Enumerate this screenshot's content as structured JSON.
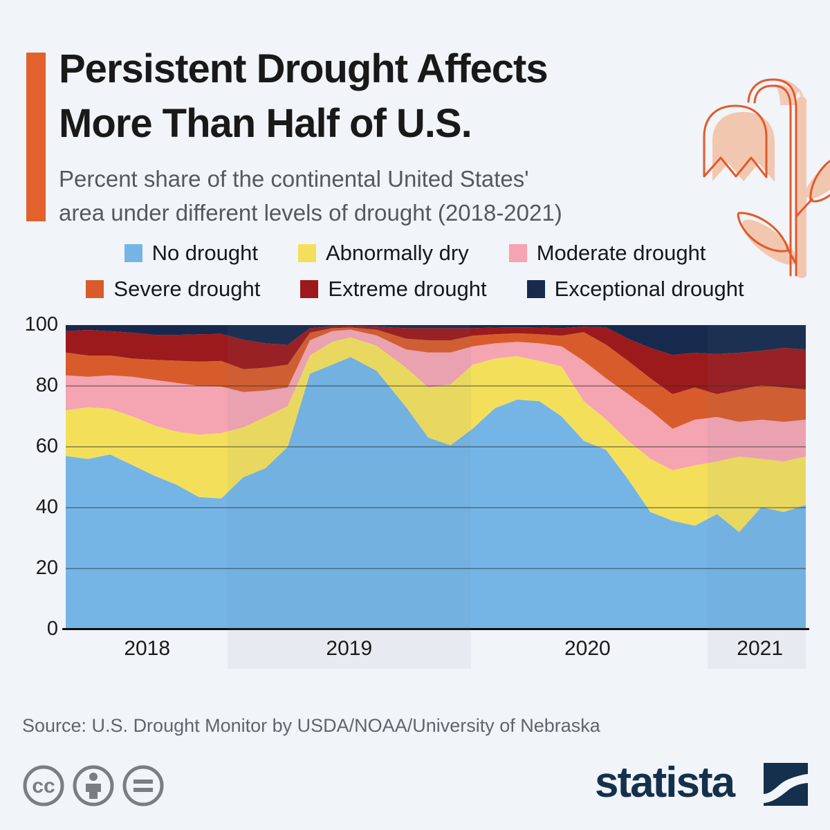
{
  "page": {
    "background": "#F1F4F8",
    "accent_color": "#E2612C"
  },
  "header": {
    "title_line1": "Persistent Drought Affects",
    "title_line2": "More Than Half of U.S.",
    "subtitle_line1": "Percent share of the continental United States'",
    "subtitle_line2": "area under different levels of drought (2018-2021)"
  },
  "legend": {
    "items": [
      {
        "key": "no-drought",
        "label": "No drought",
        "color": "#74B5E6"
      },
      {
        "key": "abnormally-dry",
        "label": "Abnormally dry",
        "color": "#F4DF5B"
      },
      {
        "key": "moderate-drought",
        "label": "Moderate drought",
        "color": "#F5A4B2"
      },
      {
        "key": "severe-drought",
        "label": "Severe drought",
        "color": "#D85C2B"
      },
      {
        "key": "extreme-drought",
        "label": "Extreme drought",
        "color": "#9C1A1C"
      },
      {
        "key": "exceptional-drought",
        "label": "Exceptional drought",
        "color": "#172A4D"
      }
    ]
  },
  "chart_data": {
    "type": "area",
    "stacked": true,
    "title": "Percent share of the continental United States' area under different levels of drought (2018-2021)",
    "ylabel": "Percent share",
    "ylim": [
      0,
      100
    ],
    "grid": true,
    "legend_position": "top",
    "x": [
      0,
      0.03,
      0.06,
      0.09,
      0.12,
      0.15,
      0.18,
      0.21,
      0.24,
      0.27,
      0.3,
      0.33,
      0.36,
      0.385,
      0.42,
      0.46,
      0.49,
      0.52,
      0.55,
      0.58,
      0.61,
      0.64,
      0.67,
      0.7,
      0.73,
      0.76,
      0.79,
      0.82,
      0.85,
      0.88,
      0.91,
      0.94,
      0.97,
      1.0
    ],
    "x_axis": {
      "ticks": [
        {
          "label": "2018",
          "pos": 0.11
        },
        {
          "label": "2019",
          "pos": 0.383
        },
        {
          "label": "2020",
          "pos": 0.705
        },
        {
          "label": "2021",
          "pos": 0.938
        }
      ],
      "band_edges": [
        0,
        0.219,
        0.548,
        0.867,
        1
      ]
    },
    "y_axis": {
      "ticks": [
        0,
        20,
        40,
        60,
        80,
        100
      ]
    },
    "series": [
      {
        "key": "no-drought",
        "name": "No drought",
        "color": "#74B5E6",
        "values": [
          57,
          56,
          57.5,
          54,
          50.5,
          47.5,
          43.5,
          43,
          50,
          53,
          60,
          84,
          87,
          89.5,
          85,
          73,
          63,
          60.5,
          66,
          72.7,
          75.5,
          75,
          70,
          62,
          59,
          49.3,
          38.6,
          35.7,
          34.1,
          37.9,
          32,
          40.2,
          38.6,
          40.9
        ]
      },
      {
        "key": "abnormally-dry",
        "name": "Abnormally dry",
        "color": "#F4DF5B",
        "values": [
          15,
          17,
          15,
          16,
          16.5,
          17.5,
          20.5,
          21.5,
          16.4,
          16.8,
          13.4,
          6,
          7.5,
          6.5,
          8.2,
          13,
          16.5,
          20,
          21,
          16.3,
          14.3,
          13.2,
          16.4,
          13,
          10,
          12.7,
          17.5,
          16.6,
          19.8,
          17.3,
          24.8,
          15.9,
          16.6,
          15.9
        ]
      },
      {
        "key": "moderate-drought",
        "name": "Moderate drought",
        "color": "#F5A4B2",
        "values": [
          11.5,
          10,
          11,
          13,
          15,
          16,
          16,
          15.3,
          11.6,
          8.7,
          6.1,
          5,
          3.5,
          2.5,
          3.4,
          6,
          11.5,
          10.5,
          6,
          5,
          4.7,
          5.8,
          6.6,
          13.2,
          13.5,
          15.3,
          15.9,
          13.6,
          15,
          14.6,
          11.4,
          12.8,
          13,
          12.1
        ]
      },
      {
        "key": "severe-drought",
        "name": "Severe drought",
        "color": "#D85C2B",
        "values": [
          7.5,
          7,
          6.5,
          6,
          6.6,
          7.3,
          8,
          8.4,
          7.5,
          7.5,
          7.5,
          2.5,
          1,
          0.7,
          1.9,
          3.5,
          4,
          4,
          3.5,
          3,
          2.8,
          3,
          3.5,
          9.5,
          11.1,
          10.9,
          10.5,
          11.4,
          10.6,
          7.5,
          10.6,
          11.3,
          11.3,
          9.9
        ]
      },
      {
        "key": "extreme-drought",
        "name": "Extreme drought",
        "color": "#9C1A1C",
        "values": [
          7,
          8.4,
          8,
          8.5,
          8.2,
          8.5,
          9,
          8.9,
          9.7,
          8,
          6.5,
          1.5,
          0.6,
          0.5,
          1,
          3.5,
          4,
          4,
          2.5,
          2.2,
          2,
          2.2,
          2.5,
          1.8,
          5.7,
          7.3,
          10,
          12.9,
          11.4,
          13.2,
          12.1,
          11.4,
          13,
          13.2
        ]
      },
      {
        "key": "exceptional-drought",
        "name": "Exceptional drought",
        "color": "#172A4D",
        "values": [
          2,
          1.6,
          2,
          2.5,
          3.2,
          3.2,
          3,
          2.9,
          4.8,
          6,
          6.5,
          1,
          0.4,
          0.3,
          0.5,
          1,
          1,
          1,
          1,
          0.8,
          0.7,
          0.8,
          1,
          0.5,
          0.7,
          4.5,
          7.5,
          9.8,
          9.1,
          9.5,
          9.1,
          8.4,
          7.5,
          8
        ]
      }
    ]
  },
  "footer": {
    "source": "Source: U.S. Drought Monitor by USDA/NOAA/University of Nebraska",
    "brand": "statista",
    "license_icons": [
      "creative-commons",
      "attribution",
      "no-derivatives"
    ]
  }
}
